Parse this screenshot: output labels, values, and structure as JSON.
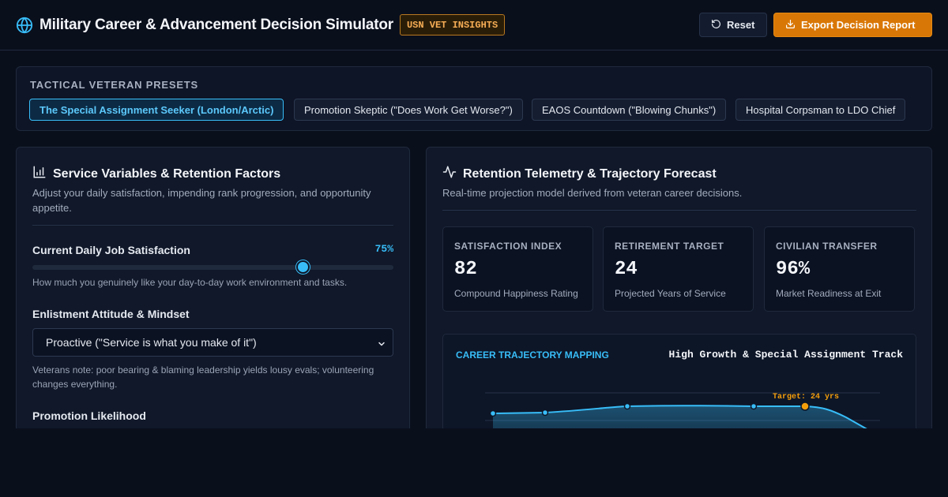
{
  "header": {
    "title": "Military Career & Advancement Decision Simulator",
    "badge": "USN VET INSIGHTS",
    "reset_label": "Reset",
    "export_label": "Export Decision Report"
  },
  "presets": {
    "title": "TACTICAL VETERAN PRESETS",
    "items": [
      {
        "label": "The Special Assignment Seeker (London/Arctic)",
        "active": true
      },
      {
        "label": "Promotion Skeptic (\"Does Work Get Worse?\")",
        "active": false
      },
      {
        "label": "EAOS Countdown (\"Blowing Chunks\")",
        "active": false
      },
      {
        "label": "Hospital Corpsman to LDO Chief",
        "active": false
      }
    ]
  },
  "left_panel": {
    "title": "Service Variables & Retention Factors",
    "subtitle": "Adjust your daily satisfaction, impending rank progression, and opportunity appetite.",
    "satisfaction": {
      "label": "Current Daily Job Satisfaction",
      "value_text": "75%",
      "value": 0.75,
      "hint": "How much you genuinely like your day-to-day work environment and tasks."
    },
    "attitude": {
      "label": "Enlistment Attitude & Mindset",
      "selected": "Proactive (\"Service is what you make of it\")",
      "hint": "Veterans note: poor bearing & blaming leadership yields lousy evals; volunteering changes everything."
    },
    "promotion": {
      "label": "Promotion Likelihood"
    }
  },
  "right_panel": {
    "title": "Retention Telemetry & Trajectory Forecast",
    "subtitle": "Real-time projection model derived from veteran career decisions.",
    "stats": [
      {
        "label": "SATISFACTION INDEX",
        "value": "82",
        "desc": "Compound Happiness Rating"
      },
      {
        "label": "RETIREMENT TARGET",
        "value": "24",
        "desc": "Projected Years of Service"
      },
      {
        "label": "CIVILIAN TRANSFER",
        "value": "96%",
        "desc": "Market Readiness at Exit"
      }
    ],
    "trajectory": {
      "title": "CAREER TRAJECTORY MAPPING",
      "track": "High Growth & Special Assignment Track",
      "target_label": "Target: 24 yrs"
    }
  },
  "colors": {
    "accent": "#38bdf8",
    "brand_orange": "#d97706",
    "badge_text": "#f6ad55",
    "background": "#0a0f1c"
  },
  "icons": {
    "brand": "globe-icon",
    "reset": "rotate-ccw-icon",
    "export": "download-icon",
    "left_panel": "bar-chart-icon",
    "right_panel": "activity-icon"
  }
}
